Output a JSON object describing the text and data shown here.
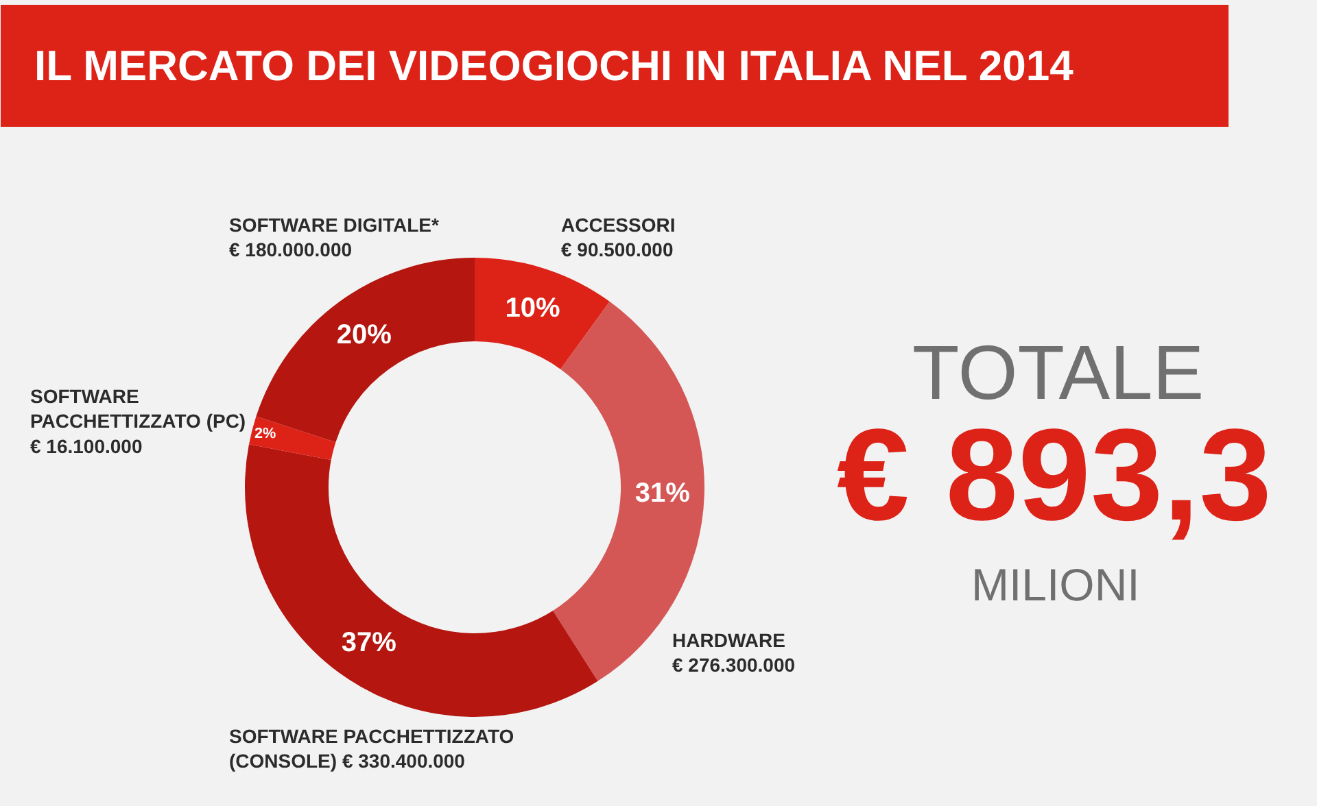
{
  "chart_data": {
    "type": "donut",
    "title": "IL MERCATO DEI VIDEOGIOCHI IN ITALIA NEL 2014",
    "categories": [
      "ACCESSORI\n€ 90.500.000",
      "HARDWARE\n€ 276.300.000",
      "SOFTWARE PACCHETTIZZATO\n(CONSOLE) € 330.400.000",
      "SOFTWARE\nPACCHETTIZZATO (PC)\n€ 16.100.000",
      "SOFTWARE DIGITALE*\n€ 180.000.000"
    ],
    "values": [
      10,
      31,
      37,
      2,
      20
    ],
    "value_labels": [
      "10%",
      "31%",
      "37%",
      "2%",
      "20%"
    ],
    "colors": [
      "#dd2318",
      "#d45756",
      "#b5160f",
      "#dd2318",
      "#b5160f"
    ],
    "annotations": [
      "TOTALE",
      "€ 893,3",
      "MILIONI"
    ]
  }
}
